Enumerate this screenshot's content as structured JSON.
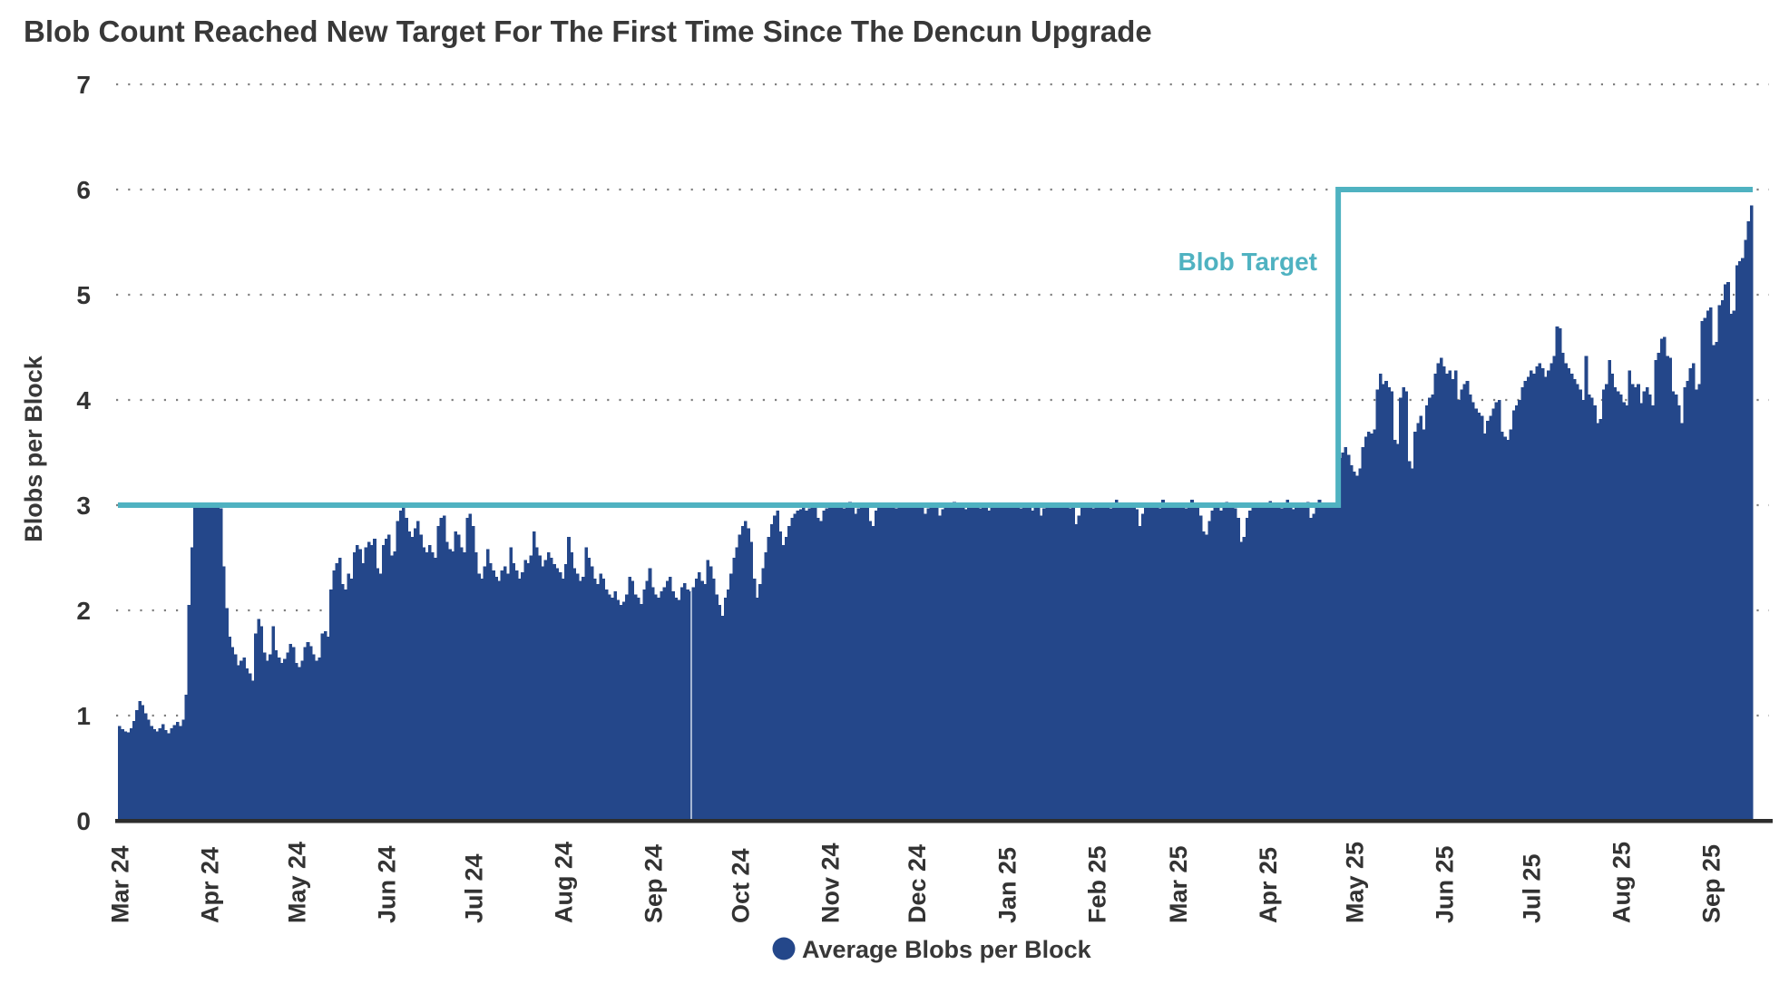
{
  "title": "Blob Count Reached New Target For The First Time Since The Dencun Upgrade",
  "y_axis": {
    "label": "Blobs per Block",
    "ticks": [
      0,
      1,
      2,
      3,
      4,
      5,
      6,
      7
    ]
  },
  "x_axis": {
    "ticks": [
      {
        "label": "Mar 24",
        "day": 0
      },
      {
        "label": "Apr 24",
        "day": 31
      },
      {
        "label": "May 24",
        "day": 61
      },
      {
        "label": "Jun 24",
        "day": 92
      },
      {
        "label": "Jul 24",
        "day": 122
      },
      {
        "label": "Aug 24",
        "day": 153
      },
      {
        "label": "Sep 24",
        "day": 184
      },
      {
        "label": "Oct 24",
        "day": 214
      },
      {
        "label": "Nov 24",
        "day": 245
      },
      {
        "label": "Dec 24",
        "day": 275
      },
      {
        "label": "Jan 25",
        "day": 306
      },
      {
        "label": "Feb 25",
        "day": 337
      },
      {
        "label": "Mar 25",
        "day": 365
      },
      {
        "label": "Apr 25",
        "day": 396
      },
      {
        "label": "May 25",
        "day": 426
      },
      {
        "label": "Jun 25",
        "day": 457
      },
      {
        "label": "Jul 25",
        "day": 487
      },
      {
        "label": "Aug 25",
        "day": 518
      },
      {
        "label": "Sep 25",
        "day": 549
      }
    ]
  },
  "legend": {
    "label": "Average Blobs per Block"
  },
  "annotations": {
    "blob_target_label": "Blob Target"
  },
  "colors": {
    "bar": "#24478a",
    "target_line": "#4fb2c1",
    "title_text": "#383838",
    "axis_text": "#333333",
    "grid_dots": "#808080",
    "baseline": "#2d2d2d",
    "gap_line": "#d8e2f0"
  },
  "chart_data": {
    "type": "bar",
    "title": "Blob Count Reached New Target For The First Time Since The Dencun Upgrade",
    "xlabel": "",
    "ylabel": "Blobs per Block",
    "ylim": [
      0,
      7
    ],
    "grid": "dotted-horizontal",
    "legend_position": "bottom-center",
    "x_unit": "day",
    "x_start_label": "Mar 24",
    "x_end_label": "Sep 25",
    "series_name": "Average Blobs per Block",
    "target_series": {
      "name": "Blob Target",
      "segments": [
        {
          "value": 3,
          "from_day": 0,
          "to_day": 420
        },
        {
          "value": 6,
          "from_day": 421,
          "to_day": 563
        }
      ]
    },
    "gap_day": 197,
    "values": [
      0.9,
      0.87,
      0.85,
      0.84,
      0.88,
      0.95,
      1.05,
      1.14,
      1.1,
      1.02,
      0.96,
      0.9,
      0.87,
      0.85,
      0.88,
      0.92,
      0.86,
      0.83,
      0.88,
      0.91,
      0.94,
      0.9,
      0.96,
      1.2,
      2.05,
      2.6,
      2.98,
      3.0,
      3.0,
      2.99,
      3.0,
      3.0,
      2.99,
      3.0,
      3.0,
      2.97,
      2.42,
      2.02,
      1.75,
      1.65,
      1.58,
      1.48,
      1.52,
      1.55,
      1.45,
      1.4,
      1.33,
      1.78,
      1.92,
      1.85,
      1.6,
      1.52,
      1.58,
      1.85,
      1.62,
      1.55,
      1.5,
      1.54,
      1.6,
      1.68,
      1.65,
      1.5,
      1.46,
      1.52,
      1.65,
      1.7,
      1.66,
      1.58,
      1.52,
      1.55,
      1.78,
      1.8,
      1.75,
      2.2,
      2.38,
      2.45,
      2.5,
      2.25,
      2.2,
      2.35,
      2.3,
      2.55,
      2.62,
      2.58,
      2.45,
      2.6,
      2.65,
      2.62,
      2.68,
      2.4,
      2.35,
      2.62,
      2.68,
      2.72,
      2.52,
      2.56,
      2.85,
      2.95,
      2.98,
      2.88,
      2.75,
      2.7,
      2.78,
      2.85,
      2.72,
      2.6,
      2.55,
      2.62,
      2.55,
      2.5,
      2.8,
      2.88,
      2.9,
      2.65,
      2.58,
      2.56,
      2.75,
      2.72,
      2.6,
      2.55,
      2.88,
      2.92,
      2.8,
      2.55,
      2.35,
      2.3,
      2.42,
      2.58,
      2.45,
      2.38,
      2.32,
      2.28,
      2.38,
      2.42,
      2.35,
      2.6,
      2.45,
      2.38,
      2.3,
      2.36,
      2.48,
      2.45,
      2.52,
      2.75,
      2.6,
      2.52,
      2.42,
      2.48,
      2.55,
      2.5,
      2.44,
      2.4,
      2.36,
      2.3,
      2.44,
      2.7,
      2.55,
      2.4,
      2.35,
      2.28,
      2.32,
      2.6,
      2.5,
      2.42,
      2.3,
      2.25,
      2.35,
      2.3,
      2.2,
      2.15,
      2.12,
      2.18,
      2.1,
      2.05,
      2.08,
      2.15,
      2.32,
      2.28,
      2.15,
      2.12,
      2.06,
      2.2,
      2.28,
      2.4,
      2.22,
      2.15,
      2.12,
      2.18,
      2.22,
      2.28,
      2.32,
      2.18,
      2.12,
      2.1,
      2.22,
      2.26,
      2.2,
      2.18,
      2.22,
      2.3,
      2.36,
      2.28,
      2.25,
      2.48,
      2.42,
      2.3,
      2.15,
      2.05,
      1.95,
      2.12,
      2.2,
      2.35,
      2.5,
      2.6,
      2.72,
      2.8,
      2.85,
      2.78,
      2.65,
      2.3,
      2.12,
      2.25,
      2.4,
      2.55,
      2.7,
      2.82,
      2.9,
      2.95,
      2.75,
      2.62,
      2.7,
      2.8,
      2.88,
      2.92,
      2.95,
      2.96,
      2.98,
      2.95,
      2.97,
      3.0,
      2.98,
      2.88,
      2.85,
      2.95,
      2.97,
      3.0,
      2.98,
      3.0,
      3.02,
      2.99,
      2.97,
      3.0,
      3.03,
      2.98,
      2.92,
      2.97,
      3.0,
      3.02,
      2.99,
      2.85,
      2.8,
      2.95,
      3.0,
      3.02,
      3.0,
      2.98,
      3.01,
      3.0,
      2.97,
      3.0,
      3.02,
      2.99,
      3.0,
      2.98,
      3.0,
      3.0,
      2.98,
      3.01,
      2.92,
      2.97,
      3.0,
      3.02,
      2.98,
      2.9,
      2.96,
      3.0,
      3.01,
      2.98,
      3.03,
      3.0,
      2.98,
      3.0,
      2.96,
      2.99,
      3.02,
      3.0,
      3.02,
      2.97,
      3.0,
      2.98,
      2.95,
      3.0,
      3.02,
      3.0,
      2.98,
      3.0,
      3.01,
      2.98,
      3.0,
      3.02,
      2.99,
      2.97,
      3.0,
      3.02,
      2.98,
      2.95,
      3.0,
      3.01,
      2.9,
      2.97,
      3.0,
      3.02,
      2.98,
      3.0,
      3.01,
      2.98,
      3.0,
      3.02,
      2.97,
      3.0,
      2.82,
      2.9,
      2.98,
      3.0,
      3.02,
      2.99,
      2.97,
      3.0,
      3.02,
      2.98,
      3.0,
      3.01,
      2.97,
      3.0,
      3.05,
      3.02,
      2.98,
      3.0,
      2.99,
      3.01,
      3.0,
      2.96,
      2.8,
      2.92,
      2.98,
      3.0,
      3.02,
      2.99,
      3.0,
      2.97,
      3.05,
      3.0,
      2.98,
      3.01,
      3.0,
      2.99,
      3.02,
      3.0,
      2.97,
      3.0,
      3.05,
      3.0,
      2.98,
      2.9,
      2.75,
      2.72,
      2.85,
      2.95,
      3.0,
      3.02,
      2.95,
      3.0,
      3.03,
      2.99,
      3.0,
      2.97,
      2.88,
      2.65,
      2.7,
      2.88,
      2.95,
      3.0,
      2.98,
      3.02,
      3.0,
      2.99,
      3.0,
      3.04,
      2.98,
      3.0,
      3.02,
      2.97,
      3.0,
      3.05,
      3.0,
      2.96,
      3.0,
      3.02,
      2.98,
      3.0,
      3.03,
      2.88,
      2.92,
      3.0,
      3.05,
      3.02,
      2.98,
      3.0,
      3.02,
      3.0,
      3.0,
      3.45,
      3.5,
      3.55,
      3.48,
      3.38,
      3.32,
      3.28,
      3.35,
      3.55,
      3.65,
      3.7,
      3.68,
      3.72,
      4.1,
      4.25,
      4.15,
      4.18,
      4.12,
      4.08,
      3.62,
      3.58,
      4.02,
      4.12,
      4.08,
      3.42,
      3.35,
      3.7,
      3.78,
      3.85,
      3.72,
      3.95,
      4.02,
      4.05,
      4.25,
      4.35,
      4.4,
      4.32,
      4.25,
      4.28,
      4.2,
      4.28,
      4.0,
      4.1,
      4.15,
      4.18,
      4.05,
      3.98,
      3.92,
      3.88,
      3.85,
      3.68,
      3.8,
      3.85,
      3.92,
      3.98,
      4.0,
      3.7,
      3.65,
      3.62,
      3.72,
      3.9,
      3.95,
      4.0,
      4.12,
      4.18,
      4.22,
      4.28,
      4.25,
      4.32,
      4.35,
      4.3,
      4.22,
      4.28,
      4.35,
      4.42,
      4.7,
      4.68,
      4.45,
      4.35,
      4.3,
      4.25,
      4.2,
      4.15,
      4.1,
      4.0,
      4.42,
      4.05,
      4.02,
      3.95,
      3.78,
      3.82,
      4.1,
      4.15,
      4.38,
      4.25,
      4.12,
      4.08,
      4.05,
      3.98,
      3.95,
      4.28,
      4.15,
      4.12,
      4.15,
      3.97,
      4.08,
      4.12,
      4.05,
      3.95,
      4.38,
      4.45,
      4.58,
      4.6,
      4.42,
      4.4,
      4.08,
      4.05,
      3.95,
      3.78,
      4.12,
      4.18,
      4.3,
      4.35,
      4.1,
      4.15,
      4.75,
      4.78,
      4.85,
      4.88,
      4.52,
      4.55,
      4.9,
      4.95,
      5.1,
      5.12,
      4.82,
      4.85,
      5.28,
      5.32,
      5.35,
      5.52,
      5.7,
      5.85
    ]
  }
}
